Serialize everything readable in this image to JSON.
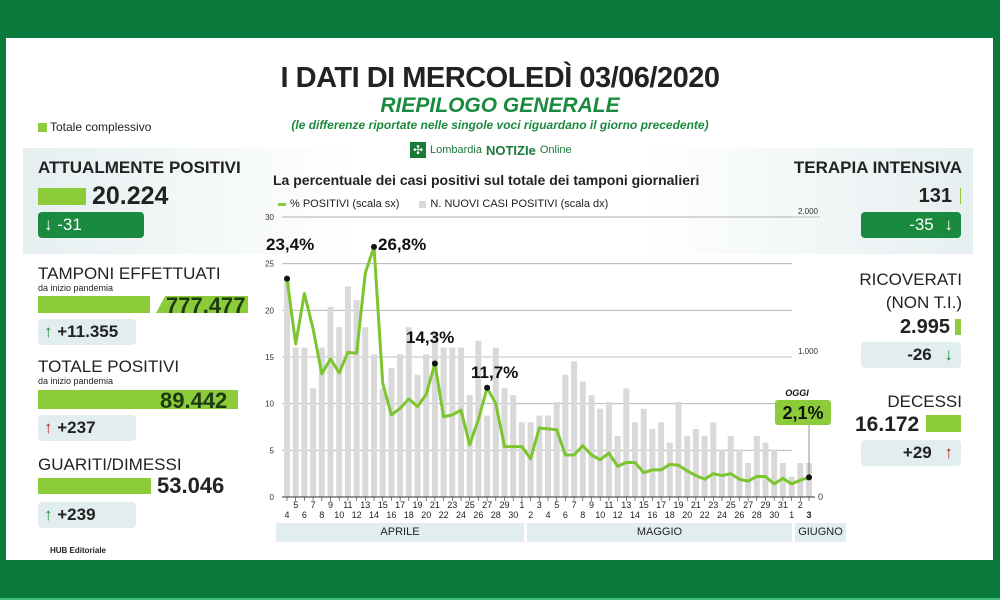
{
  "header": {
    "title": "I DATI DI MERCOLEDÌ 03/06/2020",
    "subtitle": "RIEPILOGO GENERALE",
    "note": "(le differenze riportate nelle singole voci riguardano il giorno precedente)",
    "logo_text_1": "Lombardia",
    "logo_text_2": "NOTIZIe",
    "logo_text_3": "Online"
  },
  "legend_total": "Totale complessivo",
  "left": {
    "attualmente_positivi": {
      "label": "ATTUALMENTE POSITIVI",
      "value": "20.224",
      "delta": "-31",
      "arrow": "↓"
    },
    "tamponi": {
      "label": "TAMPONI EFFETTUATI",
      "sub": "da inizio pandemia",
      "value": "777.477",
      "delta": "+11.355",
      "arrow": "↑"
    },
    "totale_positivi": {
      "label": "TOTALE POSITIVI",
      "sub": "da inizio pandemia",
      "value": "89.442",
      "delta": "+237",
      "arrow": "↑"
    },
    "guariti": {
      "label": "GUARITI/DIMESSI",
      "value": "53.046",
      "delta": "+239",
      "arrow": "↑"
    }
  },
  "right": {
    "terapia": {
      "label": "TERAPIA INTENSIVA",
      "value": "131",
      "delta": "-35",
      "arrow": "↓"
    },
    "ricoverati": {
      "label": "RICOVERATI",
      "label2": "(NON T.I.)",
      "value": "2.995",
      "delta": "-26",
      "arrow": "↓"
    },
    "decessi": {
      "label": "DECESSI",
      "value": "16.172",
      "delta": "+29",
      "arrow": "↑"
    }
  },
  "footer": {
    "credit": "HUB Editoriale"
  },
  "colors": {
    "brand_green": "#0a7a3c",
    "accent_green": "#8ccc3a",
    "down_green": "#1a8a3e",
    "up_red": "#b52a1c",
    "bar_gray": "#d9d9d9"
  },
  "chart_data": {
    "type": "bar+line",
    "title": "La percentuale dei casi positivi sul totale dei tamponi giornalieri",
    "legend": [
      "% POSITIVI (scala sx)",
      "N. NUOVI CASI POSITIVI (scala dx)"
    ],
    "left_axis": {
      "ticks": [
        0,
        5,
        10,
        15,
        20,
        25,
        30
      ],
      "range": [
        0,
        30
      ]
    },
    "right_axis": {
      "ticks": [
        "1.000",
        "2.000"
      ],
      "range": [
        0,
        2000
      ]
    },
    "months": [
      "APRILE",
      "MAGGIO",
      "GIUGNO"
    ],
    "x": [
      "4",
      "5",
      "6",
      "7",
      "8",
      "9",
      "10",
      "11",
      "12",
      "13",
      "14",
      "15",
      "16",
      "17",
      "18",
      "19",
      "20",
      "21",
      "22",
      "23",
      "24",
      "25",
      "26",
      "27",
      "28",
      "29",
      "30",
      "1",
      "2",
      "3",
      "4",
      "5",
      "6",
      "7",
      "8",
      "9",
      "10",
      "11",
      "12",
      "13",
      "14",
      "15",
      "16",
      "17",
      "18",
      "19",
      "20",
      "21",
      "22",
      "23",
      "24",
      "25",
      "26",
      "27",
      "28",
      "29",
      "30",
      "31",
      "1",
      "2",
      "3"
    ],
    "series": [
      {
        "name": "% POSITIVI",
        "values": [
          23.4,
          16.4,
          21.8,
          18.0,
          13.2,
          14.8,
          13.3,
          15.5,
          15.4,
          24.0,
          26.8,
          12.2,
          8.8,
          9.5,
          10.5,
          9.7,
          11.0,
          14.3,
          8.6,
          8.8,
          9.3,
          5.6,
          8.3,
          11.7,
          10.0,
          5.4,
          5.4,
          5.4,
          4.1,
          7.4,
          7.3,
          7.2,
          4.5,
          4.5,
          5.5,
          4.5,
          4.0,
          4.7,
          3.3,
          3.7,
          3.7,
          2.6,
          2.9,
          2.9,
          3.5,
          3.4,
          2.8,
          2.3,
          1.9,
          2.5,
          2.3,
          2.5,
          1.9,
          1.7,
          2.2,
          2.2,
          1.4,
          2.0,
          1.4,
          1.8,
          2.1
        ]
      },
      {
        "name": "N. NUOVI CASI POSITIVI",
        "values": [
          1600,
          1100,
          1100,
          800,
          1100,
          1400,
          1250,
          1550,
          1450,
          1250,
          1050,
          800,
          950,
          1050,
          1250,
          900,
          1050,
          1200,
          1100,
          1100,
          1100,
          750,
          1150,
          600,
          1100,
          800,
          750,
          550,
          550,
          600,
          600,
          700,
          900,
          1000,
          850,
          750,
          650,
          700,
          450,
          800,
          550,
          650,
          500,
          550,
          400,
          700,
          450,
          500,
          450,
          550,
          350,
          450,
          350,
          250,
          450,
          400,
          350,
          250,
          150,
          250,
          250
        ]
      }
    ],
    "annotations": [
      {
        "x": "4 apr",
        "label": "23,4%"
      },
      {
        "x": "14 apr",
        "label": "26,8%"
      },
      {
        "x": "21 apr",
        "label": "14,3%"
      },
      {
        "x": "27 apr",
        "label": "11,7%"
      },
      {
        "x": "3 giu",
        "label": "2,1%",
        "tag": "OGGI"
      }
    ]
  }
}
